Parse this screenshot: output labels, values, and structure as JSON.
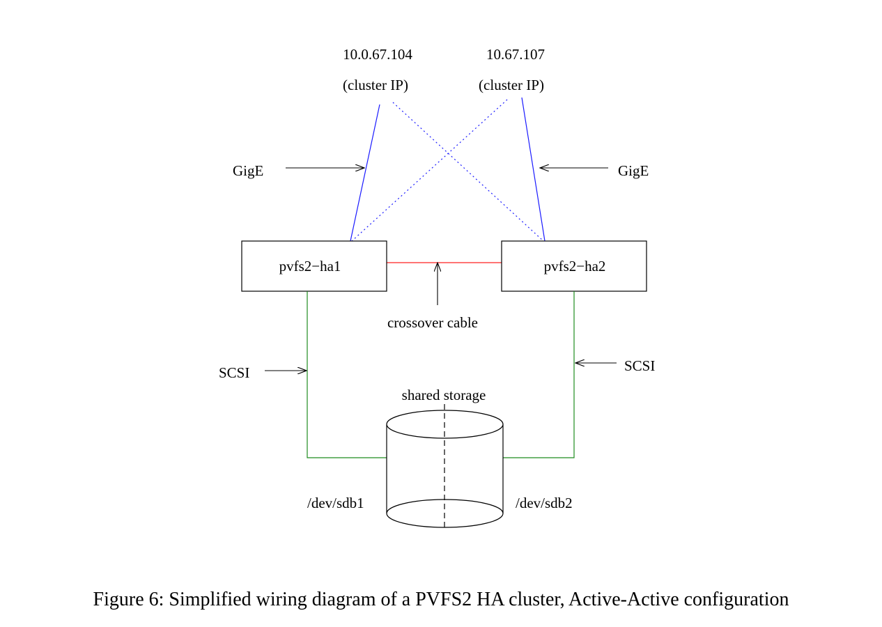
{
  "colors": {
    "gige": "#1a1aff",
    "crossover": "#ff2020",
    "scsi": "#1e8c1e",
    "outline": "#000000"
  },
  "cluster_ips": [
    {
      "address": "10.0.67.104",
      "label": "(cluster IP)"
    },
    {
      "address": "10.67.107",
      "label": "(cluster IP)"
    }
  ],
  "nodes": {
    "ha1": "pvfs2−ha1",
    "ha2": "pvfs2−ha2"
  },
  "links": {
    "gige_left": "GigE",
    "gige_right": "GigE",
    "crossover": "crossover cable",
    "scsi_left": "SCSI",
    "scsi_right": "SCSI"
  },
  "storage": {
    "title": "shared storage",
    "partition_left": "/dev/sdb1",
    "partition_right": "/dev/sdb2"
  },
  "caption": "Figure 6: Simplified wiring diagram of a PVFS2 HA cluster, Active-Active configuration"
}
